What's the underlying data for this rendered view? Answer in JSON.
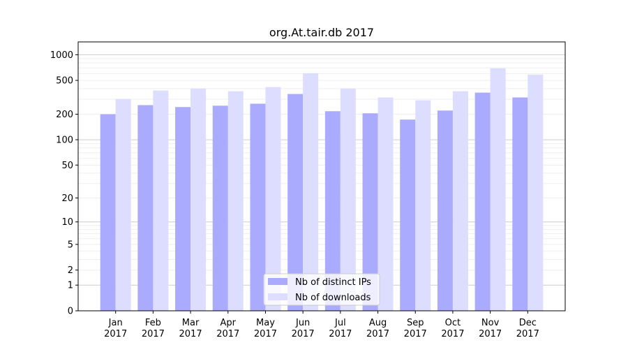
{
  "chart_data": {
    "type": "bar",
    "title": "org.At.tair.db 2017",
    "xlabel": "",
    "ylabel": "",
    "yscale": "log(1+y)",
    "ylim": [
      0,
      1300
    ],
    "yticks": [
      0,
      1,
      2,
      5,
      10,
      20,
      50,
      100,
      200,
      500,
      1000
    ],
    "grid": true,
    "legend_position": "bottom-center",
    "categories": [
      "Jan\n2017",
      "Feb\n2017",
      "Mar\n2017",
      "Apr\n2017",
      "May\n2017",
      "Jun\n2017",
      "Jul\n2017",
      "Aug\n2017",
      "Sep\n2017",
      "Oct\n2017",
      "Nov\n2017",
      "Dec\n2017"
    ],
    "series": [
      {
        "name": "Nb of distinct IPs",
        "color": "#aaaaff",
        "values": [
          200,
          256,
          243,
          252,
          266,
          346,
          217,
          205,
          173,
          221,
          359,
          315
        ]
      },
      {
        "name": "Nb of downloads",
        "color": "#ddddff",
        "values": [
          303,
          380,
          402,
          373,
          417,
          607,
          402,
          315,
          292,
          373,
          692,
          585
        ]
      }
    ]
  }
}
